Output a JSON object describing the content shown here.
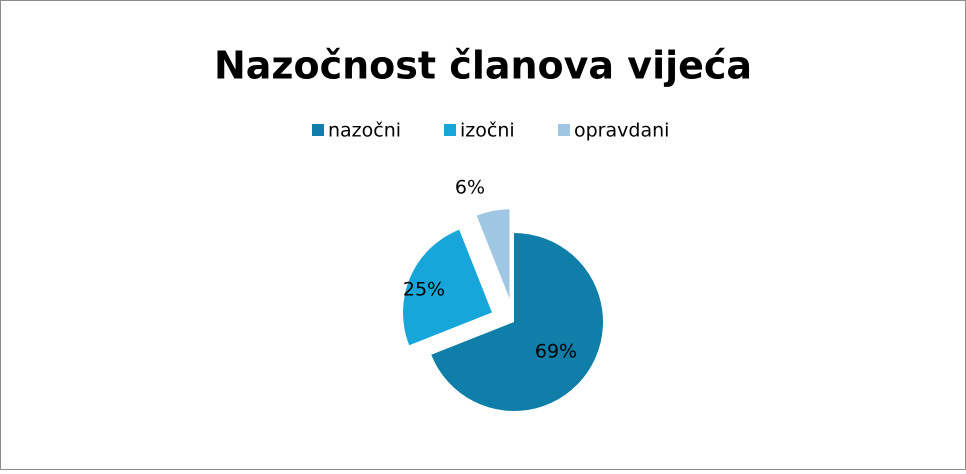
{
  "chart_data": {
    "type": "pie",
    "title": "Nazočnost članova vijeća",
    "categories": [
      "nazočni",
      "izočni",
      "opravdani"
    ],
    "values": [
      69,
      25,
      6
    ],
    "value_labels": [
      "69%",
      "25%",
      "6%"
    ],
    "colors": [
      "#0f7fa9",
      "#16a6d9",
      "#9fc6e3"
    ],
    "legend": "top"
  }
}
